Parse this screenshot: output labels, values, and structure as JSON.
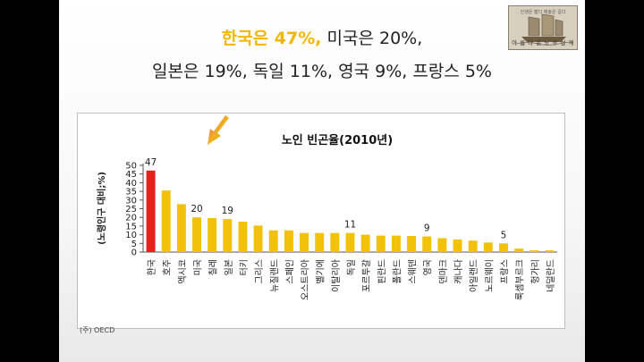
{
  "headline": {
    "line1_accent": "한국은 47%,",
    "line1_rest": " 미국은 20%,",
    "line2": "일본은 19%, 독일 11%, 영국 9%, 프랑스 5%"
  },
  "logo": {
    "top_text": "인생은 짧다 예술은 길다",
    "bottom_text": "아 름 다 운 노 후 설 계"
  },
  "chart_data": {
    "type": "bar",
    "title": "노인 빈곤율(2010년)",
    "ylabel": "(노령인구 대비;%)",
    "ylim": [
      0,
      50
    ],
    "yticks": [
      0,
      5,
      10,
      15,
      20,
      25,
      30,
      35,
      40,
      45,
      50
    ],
    "grid": false,
    "categories": [
      "한국",
      "호주",
      "멕시코",
      "미국",
      "칠레",
      "일본",
      "터키",
      "그리스",
      "뉴질랜드",
      "스페인",
      "오스트리아",
      "벨기에",
      "이탈리아",
      "독일",
      "포르투갈",
      "핀란드",
      "폴란드",
      "스웨덴",
      "영국",
      "덴마크",
      "캐나다",
      "아일랜드",
      "노르웨이",
      "프랑스",
      "룩셈부르크",
      "헝가리",
      "네덜란드"
    ],
    "values": [
      47,
      35.5,
      27.6,
      20,
      19.6,
      19,
      17.5,
      15.3,
      12.5,
      12.5,
      11,
      11,
      11,
      11,
      10,
      9.5,
      9.5,
      9.3,
      9,
      8,
      7.3,
      6.6,
      5.5,
      5,
      2,
      1,
      1
    ],
    "highlight_index": 0,
    "annotations": [
      {
        "category": "한국",
        "label": "47"
      },
      {
        "category": "미국",
        "label": "20"
      },
      {
        "category": "일본",
        "label": "19"
      },
      {
        "category": "독일",
        "label": "11"
      },
      {
        "category": "영국",
        "label": "9"
      },
      {
        "category": "프랑스",
        "label": "5"
      }
    ]
  },
  "source": "(주) OECD",
  "colors": {
    "bar": "#f2c10a",
    "highlight_bar": "#e8201c",
    "accent_text": "#f2b705",
    "arrow": "#e8a21c"
  }
}
